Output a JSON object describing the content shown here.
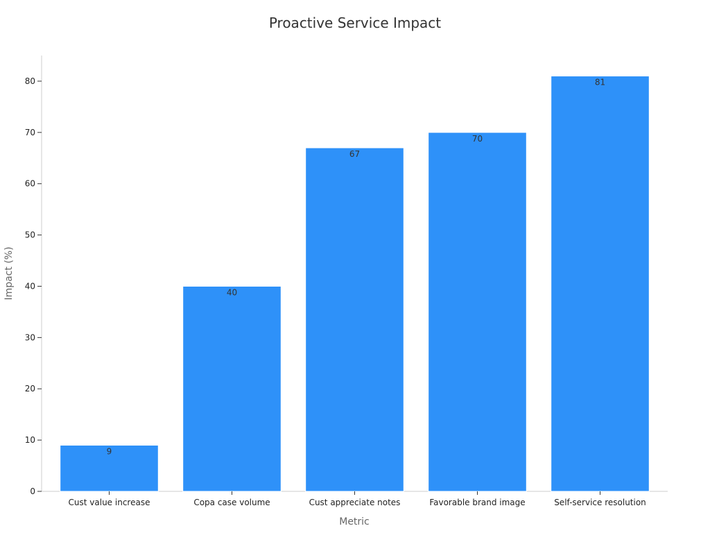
{
  "chart_data": {
    "type": "bar",
    "title": "Proactive Service Impact",
    "xlabel": "Metric",
    "ylabel": "Impact (%)",
    "categories": [
      "Cust value increase",
      "Copa case volume",
      "Cust appreciate notes",
      "Favorable brand image",
      "Self-service resolution"
    ],
    "values": [
      9,
      40,
      67,
      70,
      81
    ],
    "ylim": [
      0,
      85
    ],
    "yticks": [
      0,
      10,
      20,
      30,
      40,
      50,
      60,
      70,
      80
    ],
    "bar_color": "#2e91f9",
    "grid": false,
    "legend": "none"
  }
}
